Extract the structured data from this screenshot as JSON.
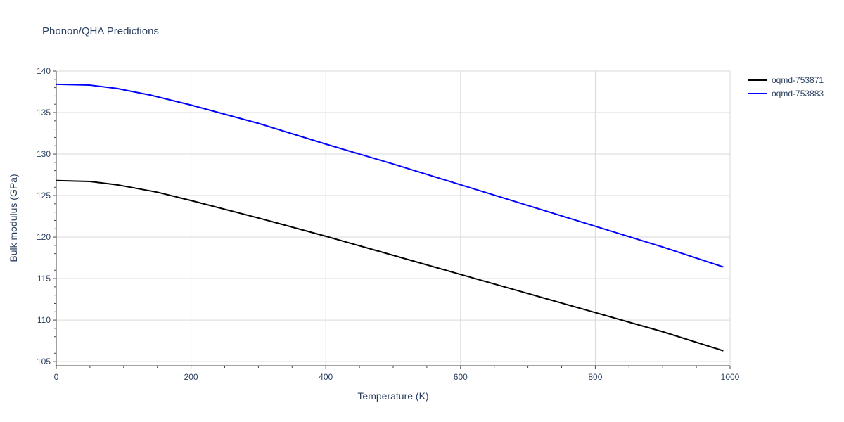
{
  "chart_data": {
    "type": "line",
    "title": "Phonon/QHA Predictions",
    "xlabel": "Temperature (K)",
    "ylabel": "Bulk modulus (GPa)",
    "xlim": [
      0,
      1000
    ],
    "ylim": [
      104.5,
      140
    ],
    "xticks": [
      0,
      200,
      400,
      600,
      800,
      1000
    ],
    "yticks": [
      105,
      110,
      115,
      120,
      125,
      130,
      135,
      140
    ],
    "grid": true,
    "legend_position": "top-right",
    "series": [
      {
        "name": "oqmd-753871",
        "color": "#000000",
        "x": [
          0,
          50,
          90,
          150,
          200,
          300,
          400,
          500,
          600,
          700,
          800,
          900,
          990
        ],
        "y": [
          126.8,
          126.7,
          126.3,
          125.4,
          124.4,
          122.3,
          120.1,
          117.8,
          115.5,
          113.2,
          110.9,
          108.6,
          106.3
        ]
      },
      {
        "name": "oqmd-753883",
        "color": "#0000ff",
        "x": [
          0,
          50,
          90,
          140,
          200,
          300,
          400,
          500,
          600,
          700,
          800,
          900,
          990
        ],
        "y": [
          138.4,
          138.3,
          137.9,
          137.1,
          135.9,
          133.7,
          131.2,
          128.8,
          126.3,
          123.8,
          121.3,
          118.8,
          116.4
        ]
      }
    ]
  }
}
